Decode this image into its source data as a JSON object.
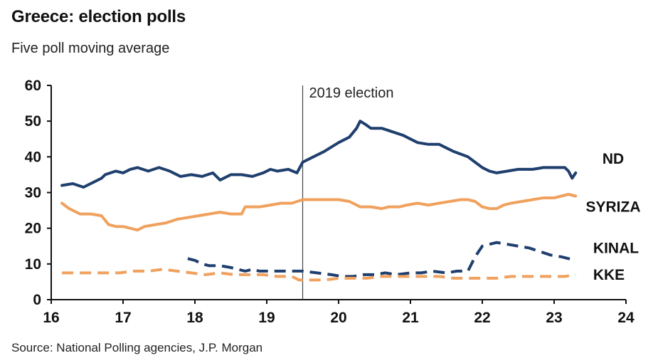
{
  "chart_data": {
    "type": "line",
    "title": "Greece: election polls",
    "subtitle": "Five poll moving average",
    "source": "Source: National Polling agencies, J.P. Morgan",
    "xlabel": "",
    "ylabel": "",
    "xlim": [
      16,
      24
    ],
    "ylim": [
      0,
      60
    ],
    "x_ticks": [
      "16",
      "17",
      "18",
      "19",
      "20",
      "21",
      "22",
      "23",
      "24"
    ],
    "y_ticks": [
      "0",
      "10",
      "20",
      "30",
      "40",
      "50",
      "60"
    ],
    "grid": false,
    "annotations": [
      {
        "x": 19.5,
        "label": "2019 election"
      }
    ],
    "colors": {
      "navy": "#1f3f6e",
      "orange": "#f0a15e",
      "axis": "#111111",
      "election_line": "#444444"
    },
    "series": [
      {
        "name": "ND",
        "style": "solid",
        "color": "#1f3f6e",
        "points": [
          [
            16.15,
            32
          ],
          [
            16.3,
            32.5
          ],
          [
            16.45,
            31.5
          ],
          [
            16.6,
            33
          ],
          [
            16.7,
            34
          ],
          [
            16.75,
            35
          ],
          [
            16.9,
            36
          ],
          [
            17.0,
            35.5
          ],
          [
            17.1,
            36.5
          ],
          [
            17.2,
            37
          ],
          [
            17.35,
            36
          ],
          [
            17.5,
            37
          ],
          [
            17.65,
            36
          ],
          [
            17.8,
            34.5
          ],
          [
            17.95,
            35
          ],
          [
            18.1,
            34.5
          ],
          [
            18.25,
            35.5
          ],
          [
            18.35,
            33.5
          ],
          [
            18.5,
            35
          ],
          [
            18.65,
            35
          ],
          [
            18.8,
            34.5
          ],
          [
            18.95,
            35.5
          ],
          [
            19.05,
            36.5
          ],
          [
            19.15,
            36
          ],
          [
            19.3,
            36.5
          ],
          [
            19.42,
            35.5
          ],
          [
            19.5,
            38.5
          ],
          [
            19.6,
            39.5
          ],
          [
            19.8,
            41.5
          ],
          [
            20.0,
            44
          ],
          [
            20.15,
            45.5
          ],
          [
            20.25,
            48
          ],
          [
            20.3,
            50
          ],
          [
            20.38,
            49
          ],
          [
            20.45,
            48
          ],
          [
            20.6,
            48
          ],
          [
            20.75,
            47
          ],
          [
            20.9,
            46
          ],
          [
            21.0,
            45
          ],
          [
            21.1,
            44
          ],
          [
            21.25,
            43.5
          ],
          [
            21.4,
            43.5
          ],
          [
            21.5,
            42.5
          ],
          [
            21.6,
            41.5
          ],
          [
            21.8,
            40
          ],
          [
            21.9,
            38.5
          ],
          [
            22.0,
            37
          ],
          [
            22.1,
            36
          ],
          [
            22.2,
            35.5
          ],
          [
            22.35,
            36
          ],
          [
            22.5,
            36.5
          ],
          [
            22.7,
            36.5
          ],
          [
            22.85,
            37
          ],
          [
            23.0,
            37
          ],
          [
            23.15,
            37
          ],
          [
            23.2,
            36
          ],
          [
            23.25,
            34
          ],
          [
            23.3,
            35.5
          ]
        ]
      },
      {
        "name": "SYRIZA",
        "style": "solid",
        "color": "#f0a15e",
        "points": [
          [
            16.15,
            27
          ],
          [
            16.25,
            25.5
          ],
          [
            16.4,
            24
          ],
          [
            16.55,
            24
          ],
          [
            16.7,
            23.5
          ],
          [
            16.8,
            21
          ],
          [
            16.9,
            20.5
          ],
          [
            17.0,
            20.5
          ],
          [
            17.1,
            20
          ],
          [
            17.2,
            19.5
          ],
          [
            17.3,
            20.5
          ],
          [
            17.45,
            21
          ],
          [
            17.6,
            21.5
          ],
          [
            17.75,
            22.5
          ],
          [
            17.9,
            23
          ],
          [
            18.05,
            23.5
          ],
          [
            18.2,
            24
          ],
          [
            18.35,
            24.5
          ],
          [
            18.5,
            24
          ],
          [
            18.65,
            24
          ],
          [
            18.7,
            26
          ],
          [
            18.9,
            26
          ],
          [
            19.05,
            26.5
          ],
          [
            19.2,
            27
          ],
          [
            19.35,
            27
          ],
          [
            19.5,
            28
          ],
          [
            19.75,
            28
          ],
          [
            20.0,
            28
          ],
          [
            20.15,
            27.5
          ],
          [
            20.3,
            26
          ],
          [
            20.45,
            26
          ],
          [
            20.6,
            25.5
          ],
          [
            20.7,
            26
          ],
          [
            20.85,
            26
          ],
          [
            20.95,
            26.5
          ],
          [
            21.1,
            27
          ],
          [
            21.25,
            26.5
          ],
          [
            21.4,
            27
          ],
          [
            21.55,
            27.5
          ],
          [
            21.7,
            28
          ],
          [
            21.8,
            28
          ],
          [
            21.9,
            27.5
          ],
          [
            22.0,
            26
          ],
          [
            22.1,
            25.5
          ],
          [
            22.2,
            25.5
          ],
          [
            22.3,
            26.5
          ],
          [
            22.4,
            27
          ],
          [
            22.55,
            27.5
          ],
          [
            22.7,
            28
          ],
          [
            22.85,
            28.5
          ],
          [
            23.0,
            28.5
          ],
          [
            23.1,
            29
          ],
          [
            23.2,
            29.5
          ],
          [
            23.3,
            29
          ]
        ]
      },
      {
        "name": "KINAL",
        "style": "dashed",
        "color": "#1f3f6e",
        "points": [
          [
            17.9,
            11.5
          ],
          [
            18.0,
            11
          ],
          [
            18.1,
            10
          ],
          [
            18.2,
            9.5
          ],
          [
            18.35,
            9.5
          ],
          [
            18.5,
            9
          ],
          [
            18.6,
            8.5
          ],
          [
            18.7,
            8
          ],
          [
            18.8,
            8.5
          ],
          [
            18.9,
            8
          ],
          [
            19.1,
            8
          ],
          [
            19.3,
            8
          ],
          [
            19.5,
            8
          ],
          [
            19.7,
            7.5
          ],
          [
            19.9,
            7
          ],
          [
            20.05,
            6.5
          ],
          [
            20.2,
            6.5
          ],
          [
            20.35,
            7
          ],
          [
            20.5,
            7
          ],
          [
            20.65,
            7.5
          ],
          [
            20.8,
            7
          ],
          [
            21.0,
            7.5
          ],
          [
            21.15,
            7.5
          ],
          [
            21.3,
            8
          ],
          [
            21.5,
            7.5
          ],
          [
            21.65,
            8
          ],
          [
            21.8,
            8
          ],
          [
            21.9,
            12
          ],
          [
            22.0,
            15
          ],
          [
            22.1,
            15.5
          ],
          [
            22.2,
            16
          ],
          [
            22.35,
            15.5
          ],
          [
            22.5,
            15
          ],
          [
            22.65,
            14.5
          ],
          [
            22.8,
            13.5
          ],
          [
            22.95,
            12.5
          ],
          [
            23.1,
            12
          ],
          [
            23.2,
            11.5
          ],
          [
            23.3,
            11
          ]
        ]
      },
      {
        "name": "KKE",
        "style": "dashed",
        "color": "#f0a15e",
        "points": [
          [
            16.15,
            7.5
          ],
          [
            16.35,
            7.5
          ],
          [
            16.55,
            7.5
          ],
          [
            16.75,
            7.5
          ],
          [
            16.95,
            7.5
          ],
          [
            17.15,
            8
          ],
          [
            17.35,
            8
          ],
          [
            17.55,
            8.5
          ],
          [
            17.75,
            8
          ],
          [
            17.95,
            7.5
          ],
          [
            18.15,
            7
          ],
          [
            18.35,
            7.5
          ],
          [
            18.55,
            7
          ],
          [
            18.75,
            7
          ],
          [
            18.95,
            7
          ],
          [
            19.15,
            6.5
          ],
          [
            19.35,
            6.5
          ],
          [
            19.45,
            5.5
          ],
          [
            19.6,
            5.5
          ],
          [
            19.8,
            5.5
          ],
          [
            20.0,
            6
          ],
          [
            20.2,
            6
          ],
          [
            20.4,
            6
          ],
          [
            20.6,
            6.5
          ],
          [
            20.8,
            6.5
          ],
          [
            21.0,
            6.5
          ],
          [
            21.2,
            6.5
          ],
          [
            21.4,
            6.5
          ],
          [
            21.6,
            6
          ],
          [
            21.8,
            6
          ],
          [
            22.0,
            6
          ],
          [
            22.2,
            6
          ],
          [
            22.4,
            6.5
          ],
          [
            22.6,
            6.5
          ],
          [
            22.8,
            6.5
          ],
          [
            23.0,
            6.5
          ],
          [
            23.15,
            6.5
          ],
          [
            23.3,
            7
          ]
        ]
      }
    ]
  }
}
